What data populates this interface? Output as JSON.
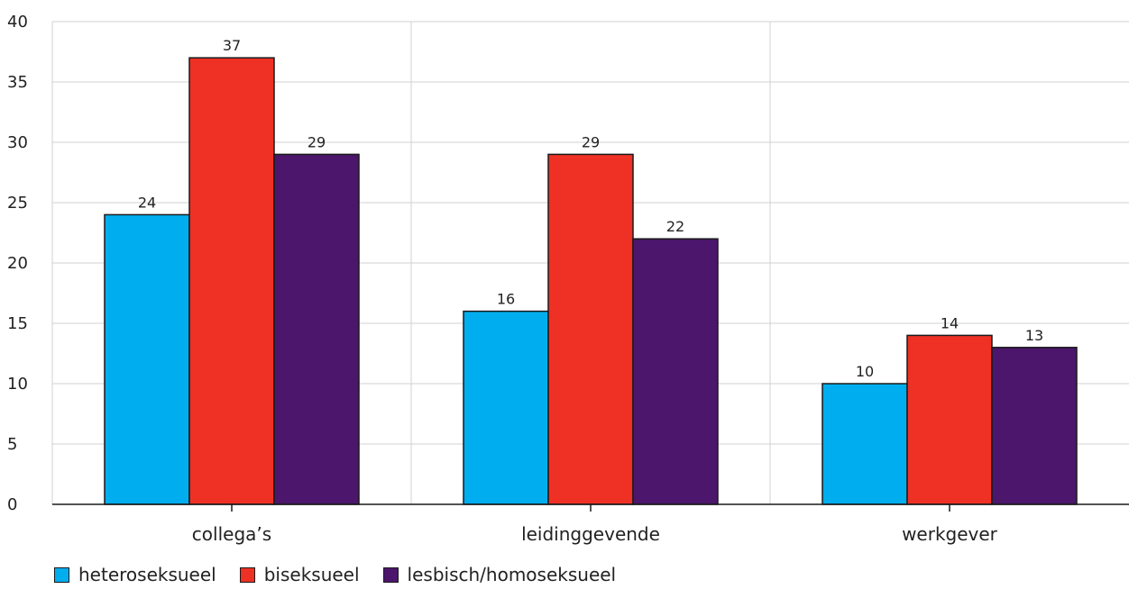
{
  "chart_data": {
    "type": "bar",
    "categories": [
      "collega’s",
      "leidinggevende",
      "werkgever"
    ],
    "series": [
      {
        "name": "heteroseksueel",
        "color": "#00aeef",
        "values": [
          24,
          16,
          10
        ]
      },
      {
        "name": "biseksueel",
        "color": "#ee3124",
        "values": [
          37,
          29,
          14
        ]
      },
      {
        "name": "lesbisch/homoseksueel",
        "color": "#4b166b",
        "values": [
          29,
          22,
          13
        ]
      }
    ],
    "ylim": [
      0,
      40
    ],
    "yticks": [
      0,
      5,
      10,
      15,
      20,
      25,
      30,
      35,
      40
    ],
    "grid": true,
    "legend_position": "bottom-left",
    "data_labels": true
  }
}
